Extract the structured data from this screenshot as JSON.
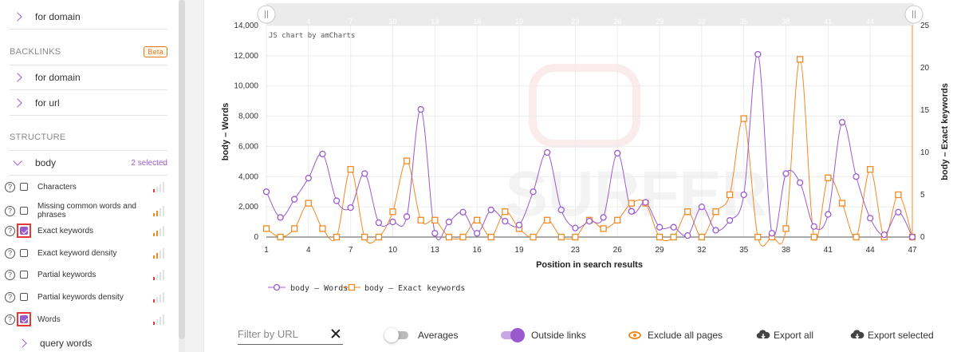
{
  "sidebar": {
    "top_item": "for domain",
    "backlinks": {
      "heading": "BACKLINKS",
      "badge": "Beta",
      "items": [
        "for domain",
        "for url"
      ]
    },
    "structure": {
      "heading": "STRUCTURE",
      "group_label": "body",
      "selected_count": "2 selected",
      "options": [
        {
          "label": "Characters",
          "checked": false,
          "bar_level": 1,
          "bar_color": "red"
        },
        {
          "label": "Missing common words and phrases",
          "checked": false,
          "bar_level": 2,
          "bar_color": "orange"
        },
        {
          "label": "Exact keywords",
          "checked": true,
          "bar_level": 2,
          "bar_color": "orange"
        },
        {
          "label": "Exact keyword density",
          "checked": false,
          "bar_level": 2,
          "bar_color": "orange"
        },
        {
          "label": "Partial keywords",
          "checked": false,
          "bar_level": 1,
          "bar_color": "red"
        },
        {
          "label": "Partial keywords density",
          "checked": false,
          "bar_level": 1,
          "bar_color": "red"
        },
        {
          "label": "Words",
          "checked": true,
          "bar_level": 1,
          "bar_color": "red"
        }
      ],
      "next_item": "query words"
    }
  },
  "chart": {
    "credit": "JS chart by amCharts",
    "watermark": "SURFER",
    "scrollbar_labels": [
      "4",
      "7",
      "10",
      "13",
      "16",
      "19",
      "23",
      "26",
      "29",
      "32",
      "35",
      "38",
      "41",
      "44"
    ],
    "colors": {
      "words": "#9b59d0",
      "exact": "#f08a24"
    }
  },
  "chart_data": {
    "type": "line",
    "xlabel": "Position in search results",
    "ylabel_left": "body – Words",
    "ylabel_right": "body – Exact keywords",
    "x": [
      1,
      2,
      3,
      4,
      5,
      6,
      7,
      8,
      9,
      10,
      11,
      12,
      13,
      14,
      15,
      16,
      17,
      18,
      19,
      20,
      21,
      22,
      23,
      24,
      25,
      26,
      27,
      28,
      29,
      30,
      31,
      32,
      33,
      34,
      35,
      36,
      37,
      38,
      39,
      40,
      41,
      42,
      43,
      44,
      45,
      46,
      47
    ],
    "x_ticks": [
      1,
      4,
      7,
      10,
      13,
      16,
      19,
      23,
      26,
      29,
      32,
      35,
      38,
      41,
      44,
      47
    ],
    "y_left_ticks": [
      "0",
      "2,000",
      "4,000",
      "6,000",
      "8,000",
      "10,000",
      "12,000",
      "14,000"
    ],
    "y_right_ticks": [
      "0",
      "5",
      "10",
      "15",
      "20",
      "25"
    ],
    "ylim_left": [
      0,
      14000
    ],
    "ylim_right": [
      0,
      25
    ],
    "series": [
      {
        "name": "body – Words",
        "axis": "left",
        "values": [
          3000,
          1300,
          2500,
          3900,
          5500,
          2400,
          1950,
          4200,
          950,
          1000,
          1350,
          8450,
          250,
          1000,
          1650,
          250,
          1800,
          1050,
          800,
          3000,
          5600,
          1800,
          600,
          1050,
          1300,
          5550,
          1700,
          2300,
          650,
          650,
          100,
          2000,
          450,
          1100,
          2800,
          12100,
          250,
          4200,
          3600,
          700,
          1500,
          7600,
          4000,
          1250,
          150,
          1650,
          0
        ]
      },
      {
        "name": "body – Exact keywords",
        "axis": "right",
        "values": [
          1,
          0,
          1,
          4,
          1,
          0,
          8,
          0,
          0,
          3,
          9,
          2,
          2,
          0,
          0,
          2,
          0,
          3,
          1,
          0,
          2,
          0,
          0,
          2,
          1,
          2,
          4,
          4,
          0,
          0,
          3,
          0,
          3,
          5,
          14,
          0,
          0,
          1,
          21,
          0,
          7,
          4,
          0,
          8,
          0,
          5,
          0
        ]
      }
    ],
    "legend": [
      "body – Words",
      "body – Exact keywords"
    ],
    "legend_position": "bottom-left",
    "grid": true
  },
  "toolbar": {
    "filter_placeholder": "Filter by URL",
    "averages_label": "Averages",
    "outside_links_label": "Outside links",
    "exclude_label": "Exclude all pages",
    "export_all_label": "Export all",
    "export_selected_label": "Export selected"
  }
}
